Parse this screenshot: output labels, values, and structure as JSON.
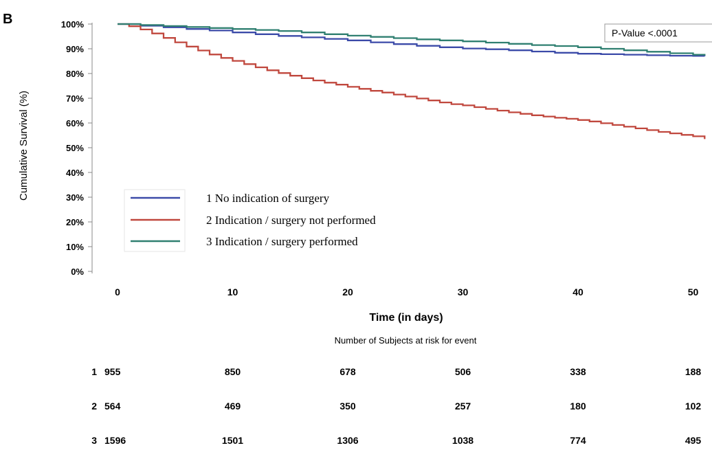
{
  "panel_label": "B",
  "chart_data": {
    "type": "line",
    "step": true,
    "title": "",
    "xlabel": "Time (in days)",
    "ylabel": "Cumulative Survival (%)",
    "xlim": [
      0,
      51
    ],
    "ylim": [
      0,
      100
    ],
    "x_ticks": [
      0,
      10,
      20,
      30,
      40,
      50
    ],
    "y_ticks": [
      0,
      10,
      20,
      30,
      40,
      50,
      60,
      70,
      80,
      90,
      100
    ],
    "y_tick_labels": [
      "0%",
      "10%",
      "20%",
      "30%",
      "40%",
      "50%",
      "60%",
      "70%",
      "80%",
      "90%",
      "100%"
    ],
    "grid": false,
    "legend_position": "lower-left",
    "annotation": "P-Value <.0001",
    "series": [
      {
        "name": "1 No indication of surgery",
        "color": "#3b4aa8",
        "x": [
          0,
          2,
          4,
          6,
          8,
          10,
          12,
          14,
          16,
          18,
          20,
          22,
          24,
          26,
          28,
          30,
          32,
          34,
          36,
          38,
          40,
          42,
          44,
          46,
          48,
          50,
          51
        ],
        "y": [
          100,
          99.3,
          98.7,
          98.0,
          97.4,
          96.6,
          95.9,
          95.2,
          94.6,
          94.0,
          93.4,
          92.6,
          91.9,
          91.2,
          90.6,
          90.1,
          89.8,
          89.4,
          88.9,
          88.4,
          88.0,
          87.8,
          87.6,
          87.4,
          87.2,
          87.1,
          87.0
        ]
      },
      {
        "name": "2 Indication / surgery not performed",
        "color": "#c0473d",
        "x": [
          0,
          1,
          2,
          3,
          4,
          5,
          6,
          7,
          8,
          9,
          10,
          11,
          12,
          13,
          14,
          15,
          16,
          17,
          18,
          19,
          20,
          21,
          22,
          23,
          24,
          25,
          26,
          27,
          28,
          29,
          30,
          31,
          32,
          33,
          34,
          35,
          36,
          37,
          38,
          39,
          40,
          41,
          42,
          43,
          44,
          45,
          46,
          47,
          48,
          49,
          50,
          51
        ],
        "y": [
          100,
          99.1,
          97.8,
          96.2,
          94.4,
          92.6,
          90.9,
          89.3,
          87.7,
          86.3,
          85.1,
          83.8,
          82.5,
          81.3,
          80.2,
          79.1,
          78.1,
          77.2,
          76.3,
          75.5,
          74.6,
          73.8,
          73.0,
          72.3,
          71.5,
          70.7,
          69.9,
          69.1,
          68.3,
          67.6,
          67.1,
          66.4,
          65.7,
          65.0,
          64.3,
          63.7,
          63.1,
          62.6,
          62.1,
          61.7,
          61.2,
          60.6,
          59.9,
          59.2,
          58.5,
          57.8,
          57.1,
          56.4,
          55.8,
          55.2,
          54.6,
          53.5
        ]
      },
      {
        "name": "3 Indication / surgery performed",
        "color": "#2f7f70",
        "x": [
          0,
          2,
          4,
          6,
          8,
          10,
          12,
          14,
          16,
          18,
          20,
          22,
          24,
          26,
          28,
          30,
          32,
          34,
          36,
          38,
          40,
          42,
          44,
          46,
          48,
          50,
          51
        ],
        "y": [
          100,
          99.6,
          99.2,
          98.8,
          98.4,
          98.0,
          97.6,
          97.2,
          96.6,
          95.9,
          95.3,
          94.8,
          94.3,
          93.8,
          93.4,
          93.0,
          92.5,
          92.0,
          91.5,
          91.1,
          90.6,
          90.0,
          89.4,
          88.8,
          88.2,
          87.6,
          87.3
        ]
      }
    ],
    "risk_table": {
      "title": "Number of Subjects at risk for event",
      "times": [
        0,
        10,
        20,
        30,
        40,
        50
      ],
      "rows": [
        {
          "label": "1",
          "values": [
            "955",
            "850",
            "678",
            "506",
            "338",
            "188"
          ]
        },
        {
          "label": "2",
          "values": [
            "564",
            "469",
            "350",
            "257",
            "180",
            "102"
          ]
        },
        {
          "label": "3",
          "values": [
            "1596",
            "1501",
            "1306",
            "1038",
            "774",
            "495"
          ]
        }
      ]
    }
  }
}
